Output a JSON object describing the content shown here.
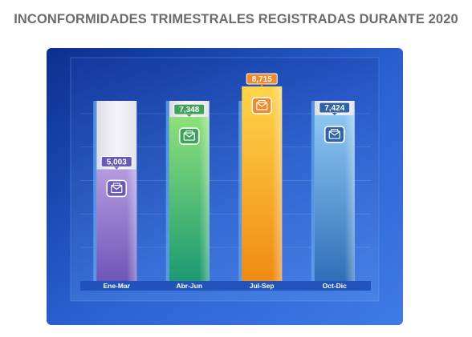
{
  "title": "INCONFORMIDADES TRIMESTRALES REGISTRADAS DURANTE 2020",
  "chart_data": {
    "type": "bar",
    "title": "INCONFORMIDADES TRIMESTRALES REGISTRADAS DURANTE 2020",
    "categories": [
      "Ene-Mar",
      "Abr-Jun",
      "Jul-Sep",
      "Oct-Dic"
    ],
    "values": [
      5003,
      7348,
      8715,
      7424
    ],
    "value_labels": [
      "5,003",
      "7,348",
      "8,715",
      "7,424"
    ],
    "ylim": [
      0,
      9000
    ],
    "grid": true,
    "legend": "none",
    "icon": "envelope-icon",
    "colors": {
      "panel_dark": "#0b2f8f",
      "panel_light": "#3f7be6",
      "track": "#ececef",
      "label_bar": "#1f4fb8",
      "bars": [
        {
          "from": "#b49be0",
          "to": "#6f56b8",
          "badge": "#6a5ab6"
        },
        {
          "from": "#8ee07a",
          "to": "#1c9a72",
          "badge": "#3ea35a"
        },
        {
          "from": "#ffd54a",
          "to": "#f08a12",
          "badge": "#f08a2a"
        },
        {
          "from": "#8ec6f2",
          "to": "#2f6fb8",
          "badge": "#2f62a8"
        }
      ]
    }
  }
}
